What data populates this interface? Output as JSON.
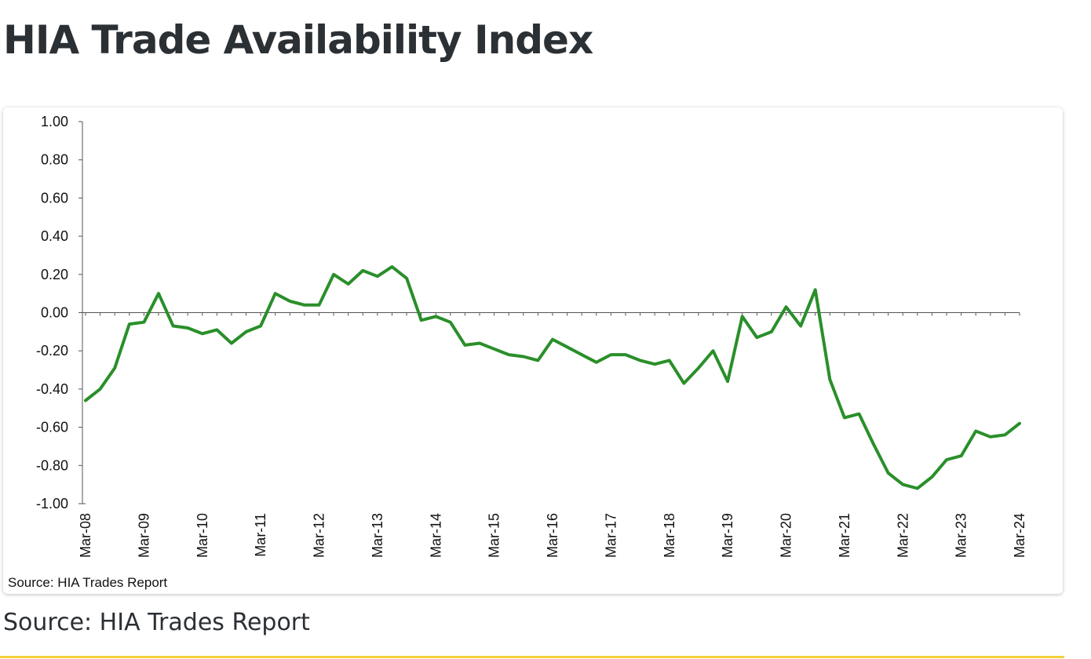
{
  "page": {
    "title": "HIA Trade Availability Index",
    "source_caption": "Source: HIA Trades Report"
  },
  "colors": {
    "line": "#2a8f2a",
    "axis": "#555555",
    "accent_rule": "#f2d13a"
  },
  "chart_data": {
    "type": "line",
    "title": "",
    "xlabel": "",
    "ylabel": "",
    "ylim": [
      -1.0,
      1.0
    ],
    "yticks": [
      1.0,
      0.8,
      0.6,
      0.4,
      0.2,
      0.0,
      -0.2,
      -0.4,
      -0.6,
      -0.8,
      -1.0
    ],
    "ytick_labels": [
      "1.00",
      "0.80",
      "0.60",
      "0.40",
      "0.20",
      "0.00",
      "-0.20",
      "-0.40",
      "-0.60",
      "-0.80",
      "-1.00"
    ],
    "x_labels": [
      "Mar-08",
      "Mar-09",
      "Mar-10",
      "Mar-11",
      "Mar-12",
      "Mar-13",
      "Mar-14",
      "Mar-15",
      "Mar-16",
      "Mar-17",
      "Mar-18",
      "Mar-19",
      "Mar-20",
      "Mar-21",
      "Mar-22",
      "Mar-23",
      "Mar-24"
    ],
    "periods_per_label": 4,
    "source_note": "Source: HIA Trades Report",
    "series": [
      {
        "name": "HIA Trade Availability Index",
        "values": [
          -0.46,
          -0.4,
          -0.29,
          -0.06,
          -0.05,
          0.1,
          -0.07,
          -0.08,
          -0.11,
          -0.09,
          -0.16,
          -0.1,
          -0.07,
          0.1,
          0.06,
          0.04,
          0.04,
          0.2,
          0.15,
          0.22,
          0.19,
          0.24,
          0.18,
          -0.04,
          -0.02,
          -0.05,
          -0.17,
          -0.16,
          -0.19,
          -0.22,
          -0.23,
          -0.25,
          -0.14,
          -0.18,
          -0.22,
          -0.26,
          -0.22,
          -0.22,
          -0.25,
          -0.27,
          -0.25,
          -0.37,
          -0.29,
          -0.2,
          -0.36,
          -0.02,
          -0.13,
          -0.1,
          0.03,
          -0.07,
          0.12,
          -0.35,
          -0.55,
          -0.53,
          -0.69,
          -0.84,
          -0.9,
          -0.92,
          -0.86,
          -0.77,
          -0.75,
          -0.62,
          -0.65,
          -0.64,
          -0.58
        ]
      }
    ]
  }
}
